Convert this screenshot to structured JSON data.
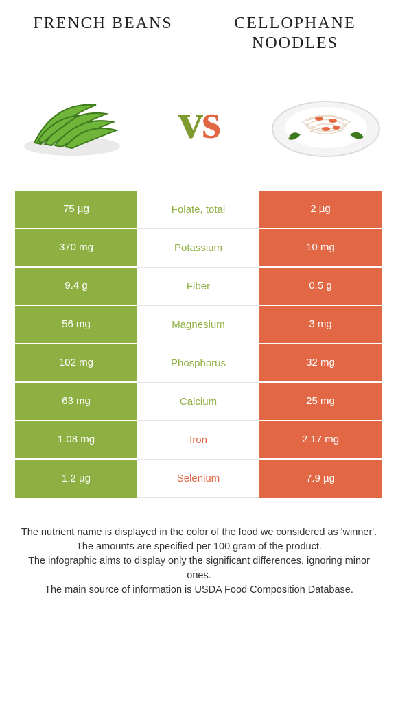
{
  "header": {
    "left_title": "French Beans",
    "right_title": "Cellophane Noodles",
    "vs_v": "v",
    "vs_s": "s"
  },
  "colors": {
    "left": "#8eb042",
    "right": "#e16745",
    "left_text": "#ffffff",
    "right_text": "#ffffff",
    "mid_bg": "#ffffff",
    "mid_border": "#e6e6e6",
    "winner_left": "#8eb042",
    "winner_right": "#e16745"
  },
  "comparison": {
    "type": "table",
    "rows": [
      {
        "left": "75 µg",
        "label": "Folate, total",
        "right": "2 µg",
        "winner": "left"
      },
      {
        "left": "370 mg",
        "label": "Potassium",
        "right": "10 mg",
        "winner": "left"
      },
      {
        "left": "9.4 g",
        "label": "Fiber",
        "right": "0.5 g",
        "winner": "left"
      },
      {
        "left": "56 mg",
        "label": "Magnesium",
        "right": "3 mg",
        "winner": "left"
      },
      {
        "left": "102 mg",
        "label": "Phosphorus",
        "right": "32 mg",
        "winner": "left"
      },
      {
        "left": "63 mg",
        "label": "Calcium",
        "right": "25 mg",
        "winner": "left"
      },
      {
        "left": "1.08 mg",
        "label": "Iron",
        "right": "2.17 mg",
        "winner": "right"
      },
      {
        "left": "1.2 µg",
        "label": "Selenium",
        "right": "7.9 µg",
        "winner": "right"
      }
    ]
  },
  "footer": {
    "line1": "The nutrient name is displayed in the color of the food we considered as 'winner'.",
    "line2": "The amounts are specified per 100 gram of the product.",
    "line3": "The infographic aims to display only the significant differences, ignoring minor ones.",
    "line4": "The main source of information is USDA Food Composition Database."
  }
}
